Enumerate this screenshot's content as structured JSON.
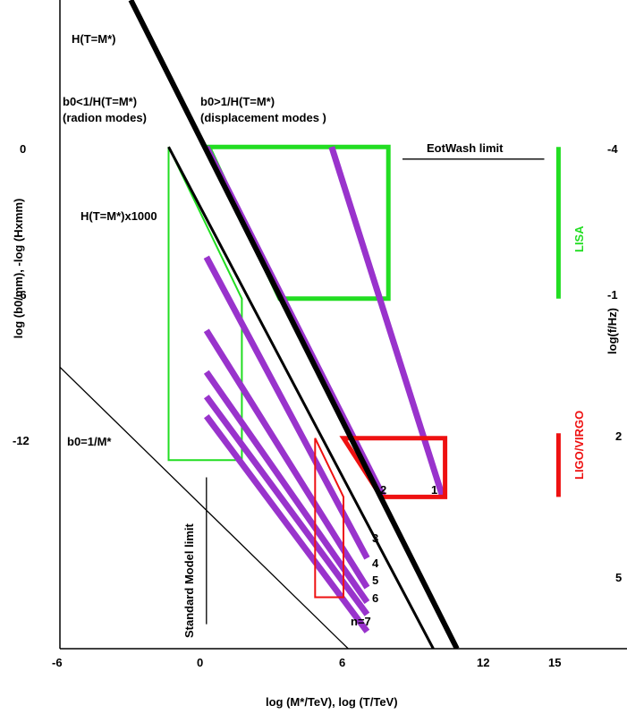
{
  "chart_data": {
    "type": "line",
    "xlabel": "log (M*/TeV), log (T/TeV)",
    "ylabel_left": "log (b0/mm), -log (Hxmm)",
    "ylabel_right": "log(f/Hz)",
    "x_ticks": [
      "-6",
      "0",
      "6",
      "12",
      "15"
    ],
    "y_ticks_left": [
      "0",
      "-6",
      "-12"
    ],
    "y_ticks_right": [
      "-4",
      "-1",
      "2",
      "5"
    ],
    "xlim": [
      -6,
      18
    ],
    "ylim": [
      -20.5,
      6
    ],
    "annotations": {
      "h_line": "H(T=M*)",
      "h_line_1000": "H(T=M*)x1000",
      "radion_cond": "b0<1/H(T=M*)",
      "radion_name": "(radion modes)",
      "disp_cond": "b0>1/H(T=M*)",
      "disp_name": "(displacement modes )",
      "b0_line": "b0=1/M*",
      "eotwash": "EotWash  limit",
      "sm_limit": "Standard  Model  limit",
      "lisa": "LISA",
      "ligo": "LIGO/VIRGO"
    },
    "lines": {
      "h_thick": [
        [
          -3,
          6
        ],
        [
          10.8,
          -20.5
        ]
      ],
      "h_1000": [
        [
          -1.4,
          0
        ],
        [
          9.8,
          -20.5
        ]
      ],
      "b0_m": [
        [
          -6,
          -9
        ],
        [
          6.2,
          -20.5
        ]
      ],
      "eotwash": [
        [
          8.5,
          -0.5
        ],
        [
          14.5,
          -0.5
        ]
      ],
      "standard_model": [
        [
          0.2,
          -13.5
        ],
        [
          0.2,
          -19.5
        ]
      ]
    },
    "series": [
      {
        "name": "1",
        "points": [
          [
            5.5,
            0
          ],
          [
            10.2,
            -14.3
          ]
        ]
      },
      {
        "name": "2",
        "points": [
          [
            0.2,
            0
          ],
          [
            7.7,
            -14.3
          ]
        ]
      },
      {
        "name": "3",
        "points": [
          [
            0.2,
            -4.5
          ],
          [
            7.0,
            -16.8
          ]
        ]
      },
      {
        "name": "4",
        "points": [
          [
            0.2,
            -7.5
          ],
          [
            7.0,
            -18.0
          ]
        ]
      },
      {
        "name": "5",
        "points": [
          [
            0.2,
            -9.2
          ],
          [
            7.0,
            -18.6
          ]
        ]
      },
      {
        "name": "6",
        "points": [
          [
            0.2,
            -10.2
          ],
          [
            7.0,
            -19.1
          ]
        ]
      },
      {
        "name": "n=7",
        "points": [
          [
            0.2,
            -11.0
          ],
          [
            7.0,
            -19.8
          ]
        ]
      }
    ],
    "regions": [
      {
        "name": "lisa-box",
        "color": "#22dd22",
        "thick": true,
        "points": [
          [
            0.3,
            0
          ],
          [
            7.9,
            0
          ],
          [
            7.9,
            -6.2
          ],
          [
            3.3,
            -6.2
          ]
        ]
      },
      {
        "name": "radion-box",
        "color": "#22dd22",
        "thick": false,
        "points": [
          [
            -1.4,
            0
          ],
          [
            1.7,
            -6.2
          ],
          [
            1.7,
            -12.8
          ],
          [
            -1.4,
            -12.8
          ]
        ]
      },
      {
        "name": "ligo-box",
        "color": "#ee1111",
        "thick": true,
        "points": [
          [
            6.0,
            -11.9
          ],
          [
            10.3,
            -11.9
          ],
          [
            10.3,
            -14.3
          ],
          [
            7.6,
            -14.3
          ]
        ]
      },
      {
        "name": "red-thin-box",
        "color": "#ee1111",
        "thick": false,
        "points": [
          [
            4.8,
            -11.9
          ],
          [
            6.0,
            -14.3
          ],
          [
            6.0,
            -18.4
          ],
          [
            4.8,
            -18.4
          ]
        ]
      }
    ],
    "detector_bands": [
      {
        "name": "LISA",
        "color": "#22dd22",
        "x": 15.1,
        "y": [
          0,
          -6.2
        ]
      },
      {
        "name": "LIGO/VIRGO",
        "color": "#ee1111",
        "x": 15.1,
        "y": [
          -11.7,
          -14.3
        ]
      }
    ],
    "curve_color": "#9933cc"
  }
}
